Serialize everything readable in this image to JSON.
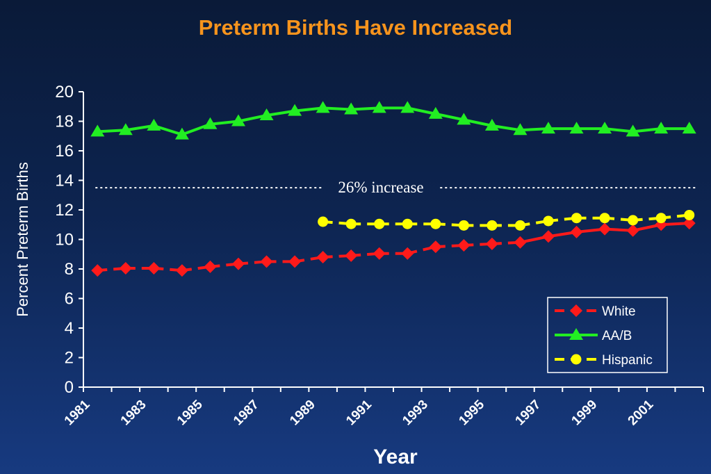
{
  "colors": {
    "title": "#f7941d",
    "white_series": "#ff1a1a",
    "aab_series": "#22ee22",
    "hispanic_series": "#ffff00",
    "axis": "#ffffff"
  },
  "chart_data": {
    "type": "line",
    "title": "Preterm Births Have Increased",
    "xlabel": "Year",
    "ylabel": "Percent Preterm Births",
    "ylim": [
      0,
      20
    ],
    "yticks": [
      0,
      2,
      4,
      6,
      8,
      10,
      12,
      14,
      16,
      18,
      20
    ],
    "xticks": [
      "1981",
      "1983",
      "1985",
      "1987",
      "1989",
      "1991",
      "1993",
      "1995",
      "1997",
      "1999",
      "2001"
    ],
    "x": [
      1981,
      1982,
      1983,
      1984,
      1985,
      1986,
      1987,
      1988,
      1989,
      1990,
      1991,
      1992,
      1993,
      1994,
      1995,
      1996,
      1997,
      1998,
      1999,
      2000,
      2001,
      2002
    ],
    "series": [
      {
        "name": "White",
        "marker": "diamond",
        "line": "dashed-then-solid",
        "values": [
          7.9,
          8.05,
          8.05,
          7.9,
          8.15,
          8.35,
          8.5,
          8.5,
          8.8,
          8.9,
          9.05,
          9.05,
          9.5,
          9.6,
          9.7,
          9.8,
          10.2,
          10.5,
          10.7,
          10.6,
          11.0,
          11.1
        ]
      },
      {
        "name": "AA/B",
        "marker": "triangle",
        "line": "solid",
        "values": [
          17.3,
          17.4,
          17.7,
          17.1,
          17.8,
          18.0,
          18.4,
          18.7,
          18.9,
          18.8,
          18.9,
          18.9,
          18.5,
          18.1,
          17.7,
          17.4,
          17.5,
          17.5,
          17.5,
          17.3,
          17.5,
          17.5
        ]
      },
      {
        "name": "Hispanic",
        "marker": "circle",
        "line": "dashed",
        "values": [
          null,
          null,
          null,
          null,
          null,
          null,
          null,
          null,
          11.2,
          11.05,
          11.05,
          11.05,
          11.05,
          10.95,
          10.95,
          10.95,
          11.25,
          11.45,
          11.45,
          11.3,
          11.45,
          11.65
        ]
      }
    ],
    "annotation": {
      "text": "26% increase",
      "y": 13.5
    },
    "legend_position": "bottom-right",
    "grid": false
  }
}
